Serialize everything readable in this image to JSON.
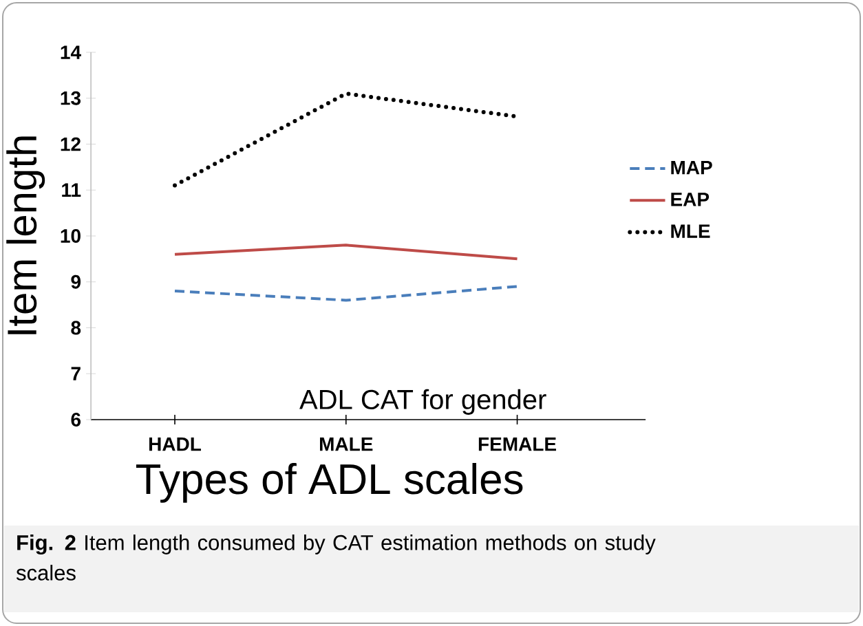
{
  "chart_data": {
    "type": "line",
    "ylabel": "Item length",
    "xlabel": "Types of ADL scales",
    "categories": [
      "HADL",
      "MALE",
      "FEMALE"
    ],
    "series": [
      {
        "name": "MAP",
        "color": "#4a7ebb",
        "line_style": "dashed",
        "values": [
          8.8,
          8.6,
          8.9
        ]
      },
      {
        "name": "EAP",
        "color": "#be4b48",
        "line_style": "solid",
        "values": [
          9.6,
          9.8,
          9.5
        ]
      },
      {
        "name": "MLE",
        "color": "#000000",
        "line_style": "dotted",
        "values": [
          11.1,
          13.1,
          12.6
        ]
      }
    ],
    "ylim": [
      6,
      14
    ],
    "yticks": [
      6,
      7,
      8,
      9,
      10,
      11,
      12,
      13,
      14
    ],
    "legend": "right",
    "grid": false,
    "annotations": [
      "ADL CAT for gender",
      "**Fig. 2** Item length consumed by CAT estimation methods on study scales"
    ]
  }
}
